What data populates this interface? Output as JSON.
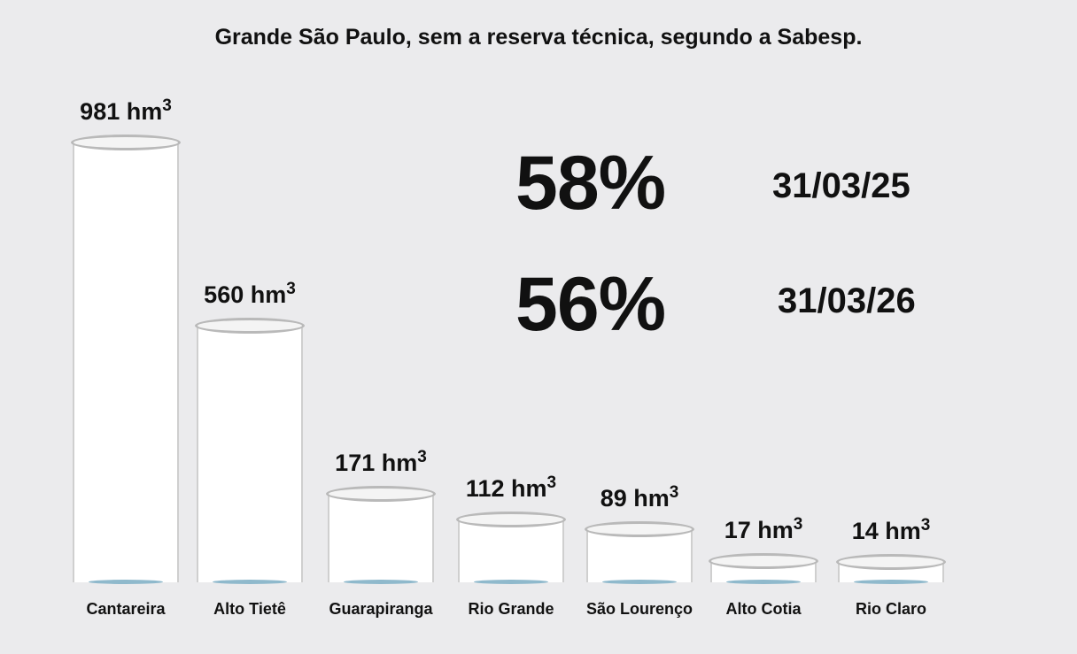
{
  "chart_data": {
    "type": "bar",
    "title": "Grande São Paulo, sem a reserva técnica, segundo a Sabesp.",
    "unit": "hm",
    "unit_exponent": "3",
    "categories": [
      "Cantareira",
      "Alto Tietê",
      "Guarapiranga",
      "Rio Grande",
      "São Lourenço",
      "Alto Cotia",
      "Rio Claro"
    ],
    "values": [
      981,
      560,
      171,
      112,
      89,
      17,
      14
    ],
    "annotations": [
      {
        "percent": "58%",
        "date": "31/03/25"
      },
      {
        "percent": "56%",
        "date": "31/03/26"
      }
    ],
    "colors": {
      "background": "#ebebed",
      "cylinder": "#ffffff",
      "water": "#8fb9cc"
    }
  }
}
